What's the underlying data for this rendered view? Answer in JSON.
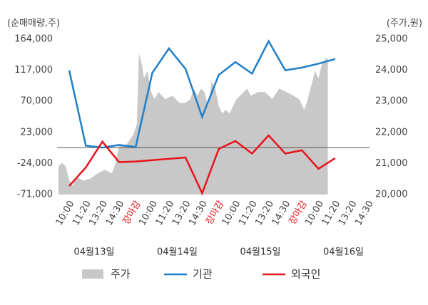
{
  "chart_data": {
    "type": "line",
    "y_title": "(순매매량,주)",
    "y2_title": "(주가,원)",
    "categories": [
      "10:00",
      "11:20",
      "13:20",
      "14:30",
      "장마감",
      "10:00",
      "11:20",
      "13:20",
      "14:30",
      "장마감",
      "10:00",
      "11:20",
      "13:20",
      "14:30",
      "장마감",
      "10:00",
      "11:20",
      "13:20",
      "14:30"
    ],
    "dates": [
      "04월13일",
      "04월14일",
      "04월15일",
      "04월16일"
    ],
    "ylim": [
      -71000,
      164000
    ],
    "yticks": [
      {
        "value": 164000,
        "label": "164,000"
      },
      {
        "value": 117000,
        "label": "117,000"
      },
      {
        "value": 70000,
        "label": "70,000"
      },
      {
        "value": 23000,
        "label": "23,000"
      },
      {
        "value": -24000,
        "label": "-24,000"
      },
      {
        "value": -71000,
        "label": "-71,000"
      }
    ],
    "y2lim": [
      20000,
      25000
    ],
    "y2ticks": [
      {
        "value": 25000,
        "label": "25,000"
      },
      {
        "value": 24000,
        "label": "24,000"
      },
      {
        "value": 23000,
        "label": "23,000"
      },
      {
        "value": 22000,
        "label": "22,000"
      },
      {
        "value": 21000,
        "label": "21,000"
      },
      {
        "value": 20000,
        "label": "20,000"
      }
    ],
    "series": [
      {
        "name": "주가",
        "type": "area",
        "axis": "y2",
        "color": "#c8c8c8",
        "x": [
          -0.64,
          -0.43,
          -0.21,
          0,
          0.21,
          0.43,
          0.86,
          1.29,
          1.71,
          2.14,
          2.57,
          2.79,
          3.0,
          3.43,
          3.86,
          4.07,
          4.2,
          4.37,
          4.5,
          4.71,
          4.93,
          5.14,
          5.36,
          5.79,
          6.21,
          6.64,
          6.99,
          7.29,
          7.5,
          7.71,
          7.93,
          8.14,
          8.36,
          8.57,
          8.79,
          9.0,
          9.21,
          9.43,
          9.64,
          9.86,
          10.07,
          10.5,
          10.71,
          10.93,
          11.36,
          11.79,
          12.21,
          12.64,
          13.07,
          13.5,
          13.84,
          14.14,
          14.36,
          14.57,
          14.79,
          15.0,
          15.21,
          15.43,
          15.56
        ],
        "values": [
          20910,
          21020,
          20910,
          20450,
          20300,
          20570,
          20450,
          20520,
          20680,
          20800,
          20680,
          21020,
          21590,
          21590,
          21930,
          22270,
          24550,
          24200,
          23750,
          23980,
          23300,
          23070,
          23300,
          23070,
          23180,
          22950,
          22950,
          23070,
          23410,
          23180,
          23410,
          23300,
          22840,
          23640,
          23410,
          22840,
          22610,
          22730,
          22610,
          22840,
          23070,
          23300,
          23410,
          23180,
          23300,
          23300,
          23070,
          23410,
          23300,
          23180,
          23070,
          22730,
          23070,
          23520,
          23980,
          23750,
          24200,
          24390,
          24390
        ]
      },
      {
        "name": "기관",
        "color": "#1f7fc8",
        "values": [
          117000,
          3000,
          0,
          4000,
          1000,
          113000,
          150000,
          119000,
          46500,
          110000,
          129500,
          112000,
          161000,
          117000,
          121000,
          127000,
          134000,
          null,
          null
        ]
      },
      {
        "name": "외국인",
        "color": "#e8141b",
        "values": [
          -58000,
          -30000,
          9000,
          -22000,
          -21000,
          -19000,
          -17000,
          -15000,
          -69000,
          -2000,
          10000,
          -9000,
          18500,
          -9000,
          -4000,
          -32000,
          -16000,
          null,
          null
        ]
      }
    ]
  }
}
